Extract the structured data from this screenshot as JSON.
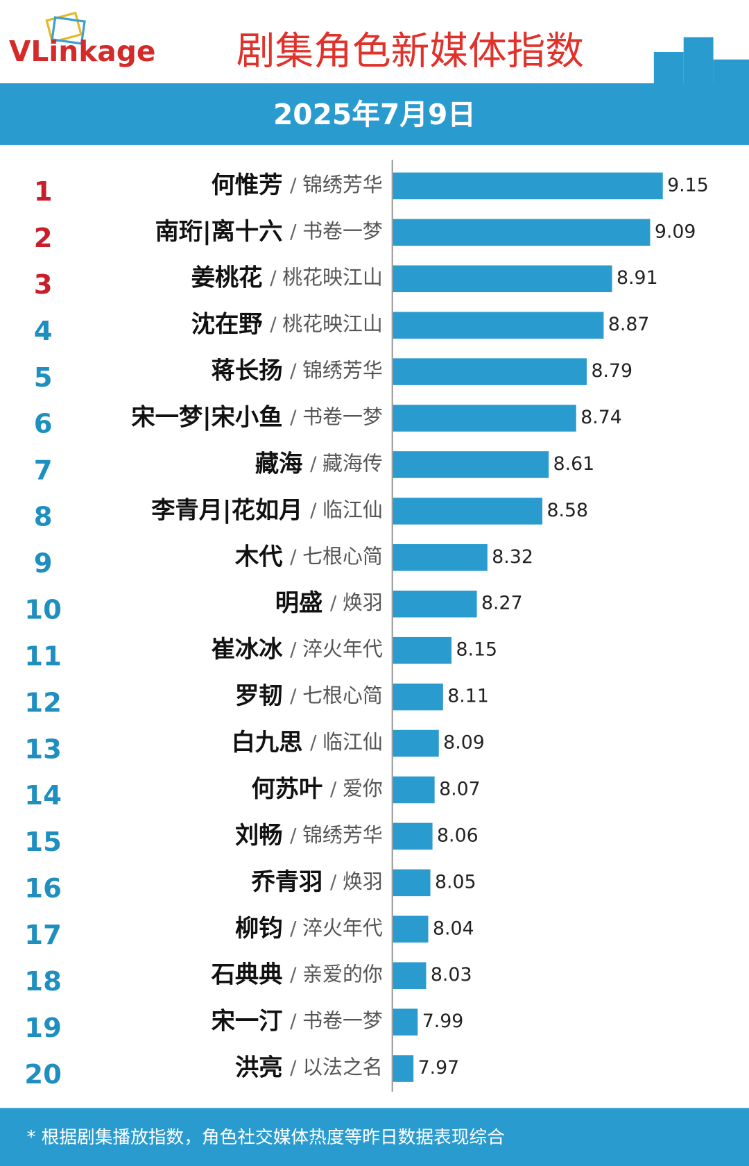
{
  "chart_data": {
    "type": "hbar",
    "logo": "VLinkage",
    "title": "剧集角色新媒体指数",
    "subtitle": "2025年7月9日",
    "ranks": [
      "1",
      "2",
      "3",
      "4",
      "5",
      "6",
      "7",
      "8",
      "9",
      "10",
      "11",
      "12",
      "13",
      "14",
      "15",
      "16",
      "17",
      "18",
      "19",
      "20"
    ],
    "characters": [
      "何惟芳",
      "南珩|离十六",
      "姜桃花",
      "沈在野",
      "蒋长扬",
      "宋一梦|宋小鱼",
      "藏海",
      "李青月|花如月",
      "木代",
      "明盛",
      "崔冰冰",
      "罗韧",
      "白九思",
      "何苏叶",
      "刘畅",
      "乔青羽",
      "柳钧",
      "石典典",
      "宋一汀",
      "洪亮"
    ],
    "separator": "/",
    "dramas": [
      "锦绣芳华",
      "书卷一梦",
      "桃花映江山",
      "桃花映江山",
      "锦绣芳华",
      "书卷一梦",
      "藏海传",
      "临江仙",
      "七根心简",
      "焕羽",
      "淬火年代",
      "七根心简",
      "临江仙",
      "爱你",
      "锦绣芳华",
      "焕羽",
      "淬火年代",
      "亲爱的你",
      "书卷一梦",
      "以法之名"
    ],
    "values": [
      9.15,
      9.09,
      8.91,
      8.87,
      8.79,
      8.74,
      8.61,
      8.58,
      8.32,
      8.27,
      8.15,
      8.11,
      8.09,
      8.07,
      8.06,
      8.05,
      8.04,
      8.03,
      7.99,
      7.97
    ],
    "xlim": [
      7.87,
      9.15
    ],
    "color": "#2a9bcf",
    "top_rank_color": "#c8202a",
    "rank_color": "#1f8fc0",
    "footnote": "* 根据剧集播放指数，角色社交媒体热度等昨日数据表现综合"
  }
}
